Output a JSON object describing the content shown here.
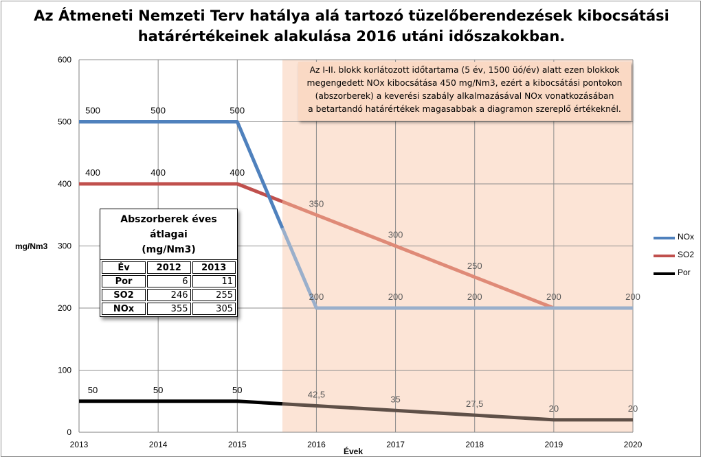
{
  "chart_data": {
    "type": "line",
    "title_lines": [
      "Az Átmeneti Nemzeti Terv hatálya alá tartozó tüzelőberendezések kibocsátási",
      "határértékeinek alakulása 2016 utáni időszakokban."
    ],
    "xlabel": "Évek",
    "ylabel": "mg/Nm3",
    "ylim": [
      0,
      600
    ],
    "yticks": [
      0,
      100,
      200,
      300,
      400,
      500,
      600
    ],
    "xlim": [
      2013,
      2020
    ],
    "xticks": [
      2013,
      2014,
      2015,
      2016,
      2017,
      2018,
      2019,
      2020
    ],
    "grid": true,
    "legend_position": "right",
    "series": [
      {
        "name": "NOx",
        "color": "#4f81bd",
        "faded_color": "#9aafcb",
        "points": [
          [
            2013,
            500
          ],
          [
            2014,
            500
          ],
          [
            2015,
            500
          ],
          [
            2016,
            200
          ],
          [
            2017,
            200
          ],
          [
            2018,
            200
          ],
          [
            2019,
            200
          ],
          [
            2020,
            200
          ]
        ],
        "labels": [
          {
            "x": 2013,
            "y": 500,
            "text": "500"
          },
          {
            "x": 2014,
            "y": 500,
            "text": "500"
          },
          {
            "x": 2015,
            "y": 500,
            "text": "500"
          },
          {
            "x": 2016,
            "y": 200,
            "text": "200"
          },
          {
            "x": 2017,
            "y": 200,
            "text": "200"
          },
          {
            "x": 2018,
            "y": 200,
            "text": "200"
          },
          {
            "x": 2019,
            "y": 200,
            "text": "200"
          },
          {
            "x": 2020,
            "y": 200,
            "text": "200"
          }
        ]
      },
      {
        "name": "SO2",
        "color": "#c0504d",
        "faded_color": "#df8a77",
        "points": [
          [
            2013,
            400
          ],
          [
            2014,
            400
          ],
          [
            2015,
            400
          ],
          [
            2016,
            350
          ],
          [
            2017,
            300
          ],
          [
            2018,
            250
          ],
          [
            2019,
            200
          ],
          [
            2020,
            200
          ]
        ],
        "labels": [
          {
            "x": 2013,
            "y": 400,
            "text": "400"
          },
          {
            "x": 2014,
            "y": 400,
            "text": "400"
          },
          {
            "x": 2015,
            "y": 400,
            "text": "400"
          },
          {
            "x": 2016,
            "y": 350,
            "text": "350"
          },
          {
            "x": 2017,
            "y": 300,
            "text": "300"
          },
          {
            "x": 2018,
            "y": 250,
            "text": "250"
          }
        ]
      },
      {
        "name": "Por",
        "color": "#000000",
        "faded_color": "#5f5048",
        "points": [
          [
            2013,
            50
          ],
          [
            2014,
            50
          ],
          [
            2015,
            50
          ],
          [
            2016,
            42.5
          ],
          [
            2017,
            35
          ],
          [
            2018,
            27.5
          ],
          [
            2019,
            20
          ],
          [
            2020,
            20
          ]
        ],
        "labels": [
          {
            "x": 2013,
            "y": 50,
            "text": "50"
          },
          {
            "x": 2014,
            "y": 50,
            "text": "50"
          },
          {
            "x": 2015,
            "y": 50,
            "text": "50"
          },
          {
            "x": 2016,
            "y": 42.5,
            "text": "42,5"
          },
          {
            "x": 2017,
            "y": 35,
            "text": "35"
          },
          {
            "x": 2018,
            "y": 27.5,
            "text": "27,5"
          },
          {
            "x": 2019,
            "y": 20,
            "text": "20"
          },
          {
            "x": 2020,
            "y": 20,
            "text": "20"
          }
        ]
      }
    ],
    "shaded_region": {
      "x_start": 2015.57,
      "x_end": 2020,
      "color": "#fce4d6"
    },
    "annotation_lines": [
      "Az I-II. blokk korlátozott időtartama (5 év, 1500 üó/év) alatt ezen blokkok",
      "megengedett NOx kibocsátása 450 mg/Nm3, ezért a kibocsátási pontokon",
      "(abszorberek) a keverési szabály alkalmazásával NOx vonatkozásában",
      "a betartandó határértékek magasabbak a diagramon szereplő értékeknél."
    ],
    "inset_table": {
      "title_lines": [
        "Abszorberek éves átlagai",
        "(mg/Nm3)"
      ],
      "header": [
        "Év",
        "2012",
        "2013"
      ],
      "rows": [
        {
          "label": "Por",
          "values": [
            "6",
            "11"
          ]
        },
        {
          "label": "SO2",
          "values": [
            "246",
            "255"
          ]
        },
        {
          "label": "NOx",
          "values": [
            "355",
            "305"
          ]
        }
      ]
    }
  }
}
